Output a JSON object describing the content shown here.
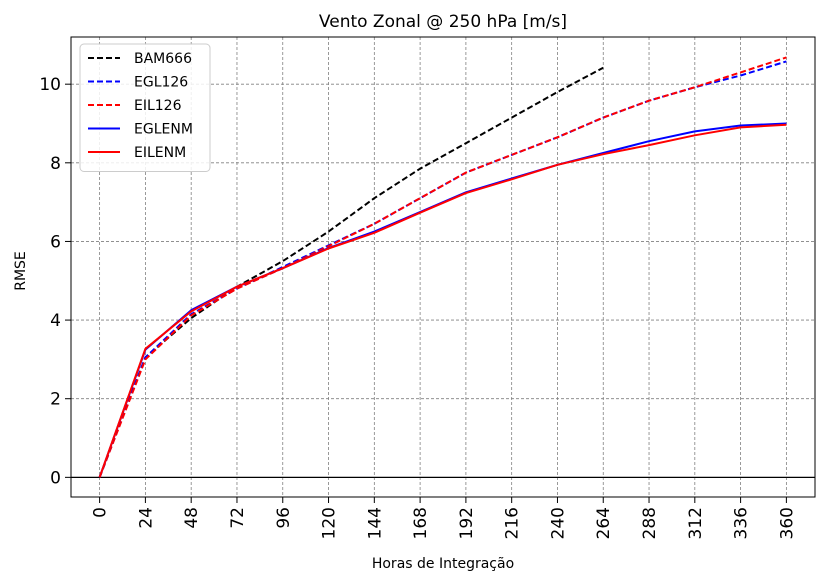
{
  "chart_data": {
    "type": "line",
    "title": "Vento Zonal @ 250 hPa [m/s]",
    "xlabel": "Horas de Integração",
    "ylabel": "RMSE",
    "xlim": [
      -15,
      375
    ],
    "ylim": [
      -0.5,
      11.2
    ],
    "xticks": [
      "0",
      "24",
      "48",
      "72",
      "96",
      "120",
      "144",
      "168",
      "192",
      "216",
      "240",
      "264",
      "288",
      "312",
      "336",
      "360"
    ],
    "yticks": [
      "0",
      "2",
      "4",
      "6",
      "8",
      "10"
    ],
    "grid": true,
    "legend_position": "top-left",
    "hline": 0,
    "series": [
      {
        "name": "BAM666",
        "color": "#000000",
        "style": "dashed",
        "x": [
          0,
          24,
          48,
          72,
          96,
          120,
          144,
          168,
          192,
          216,
          240,
          264
        ],
        "y": [
          0,
          3.05,
          4.05,
          4.85,
          5.5,
          6.25,
          7.1,
          7.85,
          8.5,
          9.15,
          9.8,
          10.42
        ]
      },
      {
        "name": "EGL126",
        "color": "#0000ff",
        "style": "dashed",
        "x": [
          0,
          24,
          48,
          72,
          96,
          120,
          144,
          168,
          192,
          216,
          240,
          264,
          288,
          312,
          336,
          360
        ],
        "y": [
          0,
          3.05,
          4.15,
          4.8,
          5.35,
          5.9,
          6.45,
          7.1,
          7.75,
          8.2,
          8.65,
          9.15,
          9.58,
          9.92,
          10.22,
          10.58
        ]
      },
      {
        "name": "EIL126",
        "color": "#ff0000",
        "style": "dashed",
        "x": [
          0,
          24,
          48,
          72,
          96,
          120,
          144,
          168,
          192,
          216,
          240,
          264,
          288,
          312,
          336,
          360
        ],
        "y": [
          0,
          3.0,
          4.12,
          4.8,
          5.32,
          5.88,
          6.45,
          7.1,
          7.75,
          8.2,
          8.65,
          9.15,
          9.58,
          9.92,
          10.3,
          10.68
        ]
      },
      {
        "name": "EGLENM",
        "color": "#0000ff",
        "style": "solid",
        "x": [
          0,
          24,
          48,
          72,
          96,
          120,
          144,
          168,
          192,
          216,
          240,
          264,
          288,
          312,
          336,
          360
        ],
        "y": [
          0,
          3.25,
          4.25,
          4.85,
          5.32,
          5.83,
          6.25,
          6.75,
          7.25,
          7.6,
          7.95,
          8.25,
          8.55,
          8.8,
          8.95,
          9.0
        ]
      },
      {
        "name": "EILENM",
        "color": "#ff0000",
        "style": "solid",
        "x": [
          0,
          24,
          48,
          72,
          96,
          120,
          144,
          168,
          192,
          216,
          240,
          264,
          288,
          312,
          336,
          360
        ],
        "y": [
          0,
          3.27,
          4.22,
          4.85,
          5.32,
          5.82,
          6.22,
          6.73,
          7.23,
          7.58,
          7.95,
          8.22,
          8.45,
          8.7,
          8.9,
          8.97
        ]
      }
    ]
  }
}
